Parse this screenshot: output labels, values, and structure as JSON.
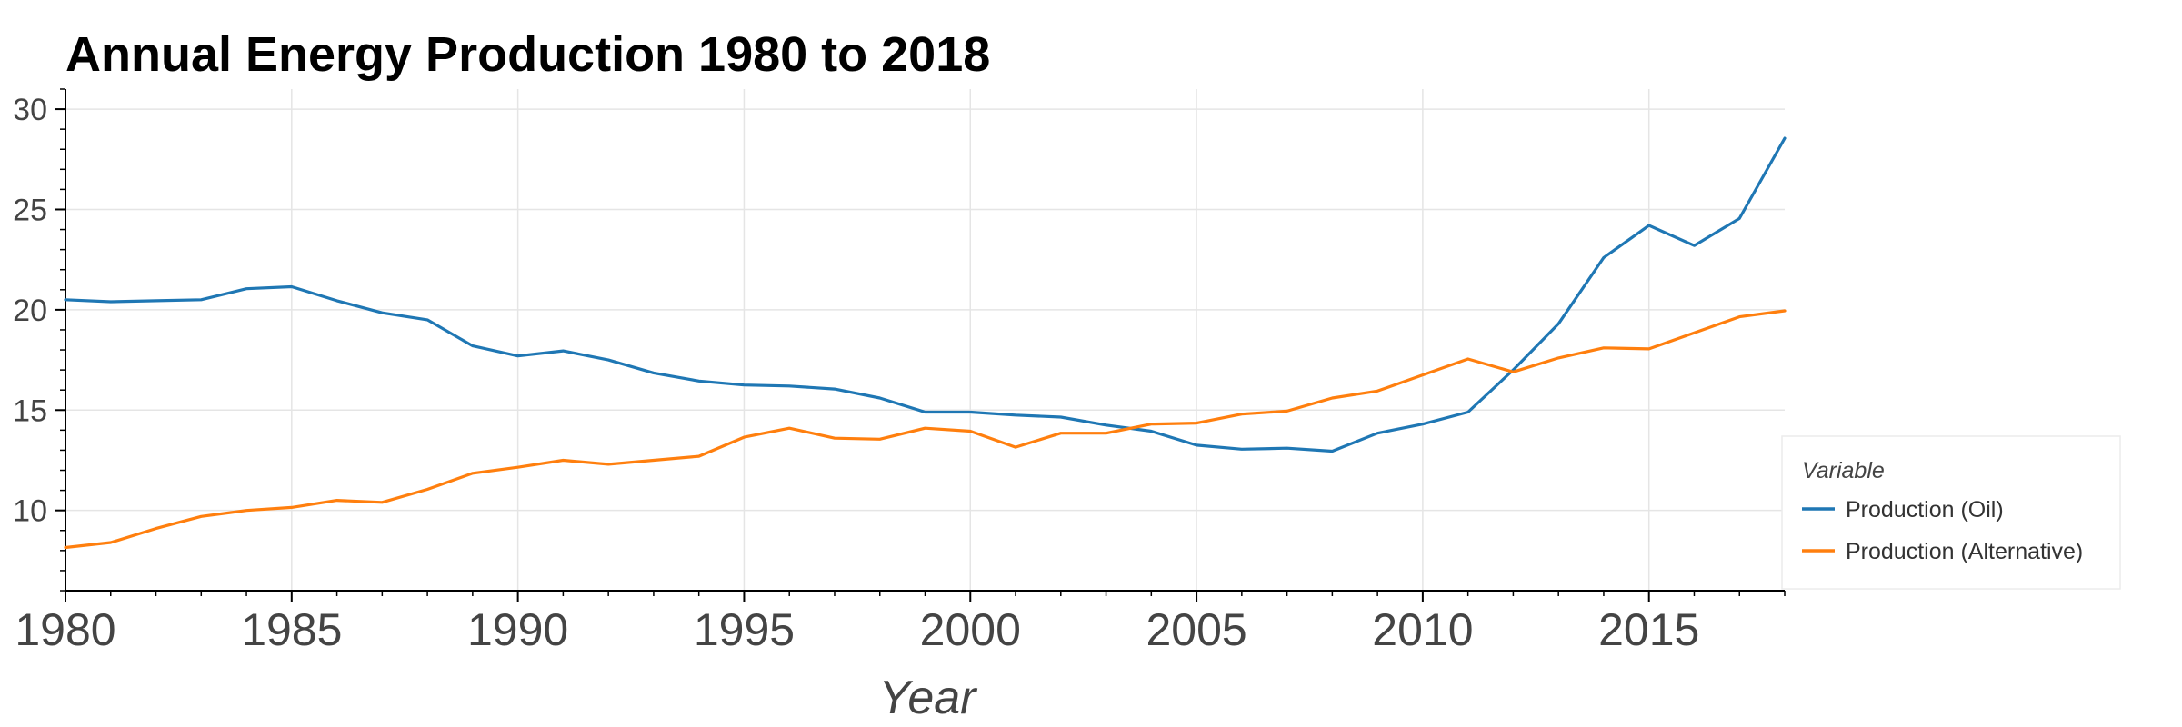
{
  "chart_data": {
    "type": "line",
    "title": "Annual Energy Production 1980 to 2018",
    "xlabel": "Year",
    "ylabel": "",
    "xlim": [
      1980,
      2018
    ],
    "ylim": [
      6,
      31
    ],
    "x_ticks": [
      1980,
      1985,
      1990,
      1995,
      2000,
      2005,
      2010,
      2015
    ],
    "y_ticks": [
      10,
      15,
      20,
      25,
      30
    ],
    "grid": true,
    "legend": {
      "title": "Variable",
      "placement": "right"
    },
    "x": [
      1980,
      1981,
      1982,
      1983,
      1984,
      1985,
      1986,
      1987,
      1988,
      1989,
      1990,
      1991,
      1992,
      1993,
      1994,
      1995,
      1996,
      1997,
      1998,
      1999,
      2000,
      2001,
      2002,
      2003,
      2004,
      2005,
      2006,
      2007,
      2008,
      2009,
      2010,
      2011,
      2012,
      2013,
      2014,
      2015,
      2016,
      2017,
      2018
    ],
    "series": [
      {
        "name": "Production (Oil)",
        "color": "#1f77b4",
        "values": [
          20.5,
          20.4,
          20.45,
          20.5,
          21.05,
          21.15,
          20.45,
          19.85,
          19.5,
          18.2,
          17.7,
          17.95,
          17.5,
          16.85,
          16.45,
          16.25,
          16.2,
          16.05,
          15.6,
          14.9,
          14.9,
          14.75,
          14.65,
          14.25,
          13.95,
          13.25,
          13.05,
          13.1,
          12.95,
          13.85,
          14.3,
          14.9,
          17.0,
          19.3,
          22.6,
          24.2,
          23.2,
          24.55,
          28.55
        ]
      },
      {
        "name": "Production (Alternative)",
        "color": "#ff7f0e",
        "values": [
          8.15,
          8.4,
          9.1,
          9.7,
          10.0,
          10.15,
          10.5,
          10.4,
          11.05,
          11.85,
          12.15,
          12.5,
          12.3,
          12.5,
          12.7,
          13.65,
          14.1,
          13.6,
          13.55,
          14.1,
          13.95,
          13.15,
          13.85,
          13.85,
          14.3,
          14.35,
          14.8,
          14.95,
          15.6,
          15.95,
          16.75,
          17.55,
          16.9,
          17.6,
          18.1,
          18.05,
          18.85,
          19.65,
          19.95
        ]
      }
    ]
  }
}
